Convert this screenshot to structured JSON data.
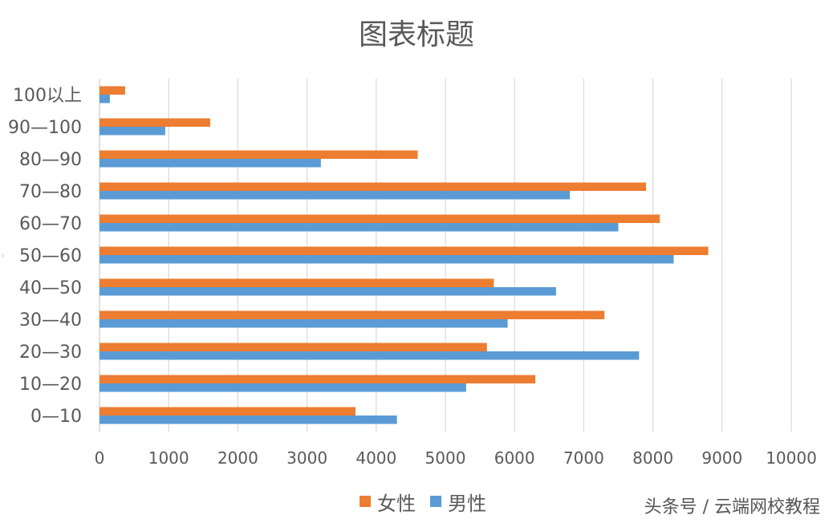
{
  "chart_data": {
    "type": "bar",
    "orientation": "horizontal",
    "title": "图表标题",
    "categories": [
      "0—10",
      "10—20",
      "20—30",
      "30—40",
      "40—50",
      "50—60",
      "60—70",
      "70—80",
      "80—90",
      "90—100",
      "100以上"
    ],
    "series": [
      {
        "name": "女性",
        "color": "#ED7D31",
        "values": [
          3700,
          6300,
          5600,
          7300,
          5700,
          8800,
          8100,
          7900,
          4600,
          1600,
          370
        ]
      },
      {
        "name": "男性",
        "color": "#5B9BD5",
        "values": [
          4300,
          5300,
          7800,
          5900,
          6600,
          8300,
          7500,
          6800,
          3200,
          950,
          150
        ]
      }
    ],
    "xlim": [
      0,
      10000
    ],
    "xticks": [
      0,
      1000,
      2000,
      3000,
      4000,
      5000,
      6000,
      7000,
      8000,
      9000,
      10000
    ],
    "xlabel": "",
    "ylabel": "",
    "grid": true,
    "legend": "bottom-center"
  },
  "watermark": "头条号 / 云端网校教程"
}
